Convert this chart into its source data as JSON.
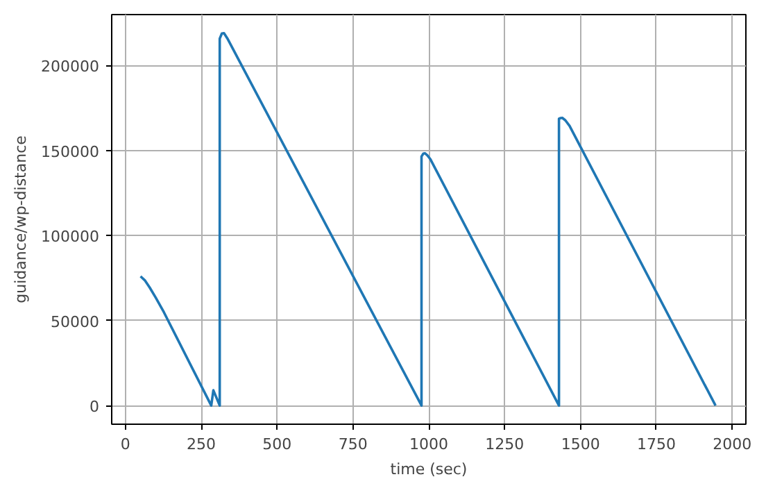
{
  "chart_data": {
    "type": "line",
    "xlabel": "time (sec)",
    "ylabel": "guidance/wp-distance",
    "x": [
      50,
      65,
      80,
      100,
      127,
      283,
      290,
      311,
      311,
      318,
      325,
      336,
      976,
      976,
      982,
      987,
      995,
      1005,
      1429,
      1429,
      1435,
      1440,
      1450,
      1464,
      1945
    ],
    "series": [
      {
        "color": "#1f77b4",
        "values": [
          76000,
          73500,
          69500,
          63500,
          54900,
          0,
          9000,
          0,
          215800,
          218800,
          219000,
          216000,
          0,
          146500,
          148200,
          148400,
          147200,
          145000,
          0,
          168700,
          169100,
          169200,
          167800,
          164500,
          0
        ]
      }
    ],
    "xlim": [
      -45,
      2045
    ],
    "ylim": [
      -10950,
      229950
    ],
    "xticks": [
      0,
      250,
      500,
      750,
      1000,
      1250,
      1500,
      1750,
      2000
    ],
    "yticks": [
      0,
      50000,
      100000,
      150000,
      200000
    ],
    "grid": true,
    "line_style": "solid"
  }
}
